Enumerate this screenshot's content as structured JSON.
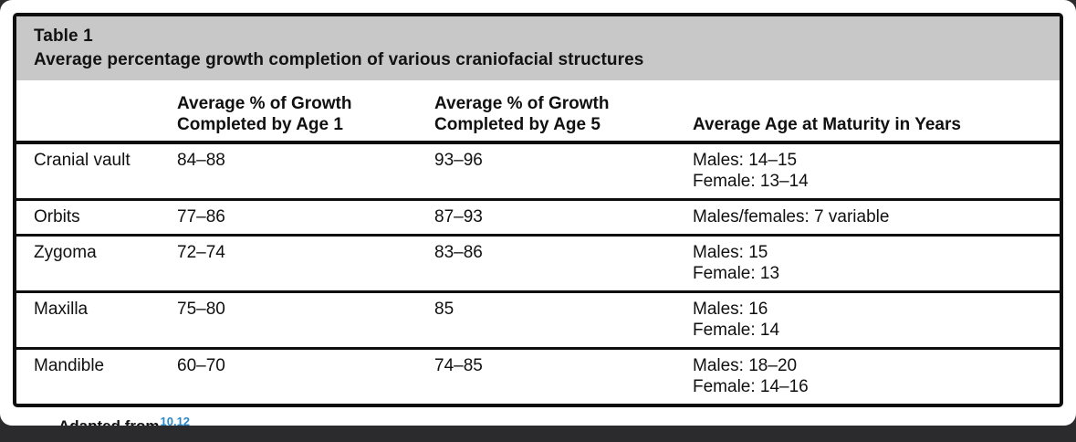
{
  "table": {
    "label": "Table 1",
    "caption": "Average percentage growth completion of various craniofacial structures",
    "columns": [
      {
        "line1": "",
        "line2": ""
      },
      {
        "line1": "Average % of Growth",
        "line2": "Completed by Age 1"
      },
      {
        "line1": "Average % of Growth",
        "line2": "Completed by Age 5"
      },
      {
        "line1": "Average Age at Maturity in Years",
        "line2": ""
      }
    ],
    "rows": [
      {
        "structure": "Cranial vault",
        "age1": "84–88",
        "age5": "93–96",
        "maturity": [
          "Males: 14–15",
          "Female: 13–14"
        ]
      },
      {
        "structure": "Orbits",
        "age1": "77–86",
        "age5": "87–93",
        "maturity": [
          "Males/females: 7 variable"
        ]
      },
      {
        "structure": "Zygoma",
        "age1": "72–74",
        "age5": "83–86",
        "maturity": [
          "Males: 15",
          "Female: 13"
        ]
      },
      {
        "structure": "Maxilla",
        "age1": "75–80",
        "age5": "85",
        "maturity": [
          "Males: 16",
          "Female: 14"
        ]
      },
      {
        "structure": "Mandible",
        "age1": "60–70",
        "age5": "74–85",
        "maturity": [
          "Males: 18–20",
          "Female: 14–16"
        ]
      }
    ]
  },
  "footnote": {
    "visible_fragment": "Adapted from",
    "reference_numbers": "10,12"
  },
  "colors": {
    "title_band_gray": "#c8c8c9",
    "border_black": "#0e0e0e",
    "background_dark": "#2b2b2d",
    "reference_blue": "#2b87c6",
    "page_white": "#ffffff"
  }
}
